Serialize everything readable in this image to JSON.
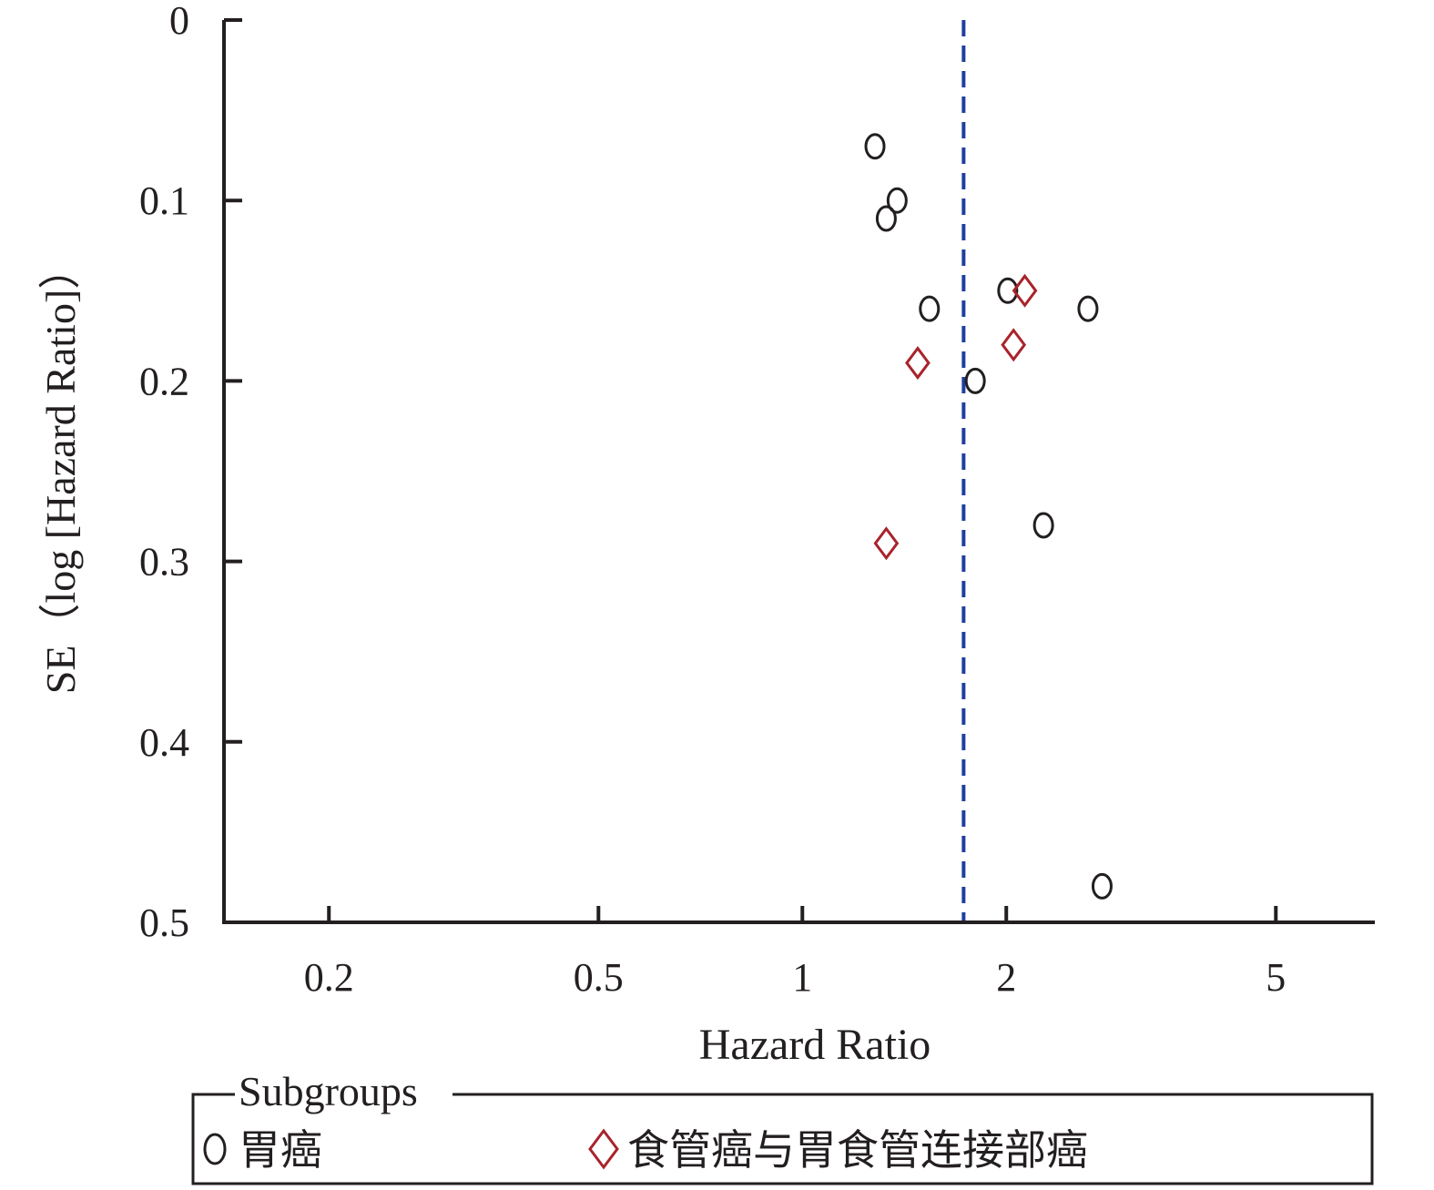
{
  "chart_data": {
    "type": "scatter",
    "xlabel": "Hazard Ratio",
    "ylabel": "SE（log [Hazard Ratio]）",
    "x_scale": "log",
    "x_ticks": [
      0.2,
      0.5,
      1,
      2,
      5
    ],
    "x_tick_labels": [
      "0.2",
      "0.5",
      "1",
      "2",
      "5"
    ],
    "xlim": [
      0.14,
      7.0
    ],
    "y_inverted": true,
    "y_ticks": [
      0,
      0.1,
      0.2,
      0.3,
      0.4,
      0.5
    ],
    "y_tick_labels": [
      "0",
      "0.1",
      "0.2",
      "0.3",
      "0.4",
      "0.5"
    ],
    "ylim": [
      0,
      0.5
    ],
    "reference_line": {
      "x": 1.73,
      "style": "dashed",
      "color": "#1f3f9e"
    },
    "legend": {
      "title": "Subgroups",
      "placement": "bottom"
    },
    "series": [
      {
        "name": "胃癌",
        "marker": "circle",
        "color": "#231f20",
        "points": [
          {
            "x": 1.28,
            "y": 0.07
          },
          {
            "x": 1.38,
            "y": 0.1
          },
          {
            "x": 1.33,
            "y": 0.11
          },
          {
            "x": 2.01,
            "y": 0.15
          },
          {
            "x": 1.54,
            "y": 0.16
          },
          {
            "x": 2.64,
            "y": 0.16
          },
          {
            "x": 1.8,
            "y": 0.2
          },
          {
            "x": 2.27,
            "y": 0.28
          },
          {
            "x": 2.77,
            "y": 0.48
          }
        ]
      },
      {
        "name": "食管癌与胃食管连接部癌",
        "marker": "diamond",
        "color": "#a8232b",
        "points": [
          {
            "x": 2.13,
            "y": 0.15
          },
          {
            "x": 2.05,
            "y": 0.18
          },
          {
            "x": 1.48,
            "y": 0.19
          },
          {
            "x": 1.33,
            "y": 0.29
          }
        ]
      }
    ]
  }
}
